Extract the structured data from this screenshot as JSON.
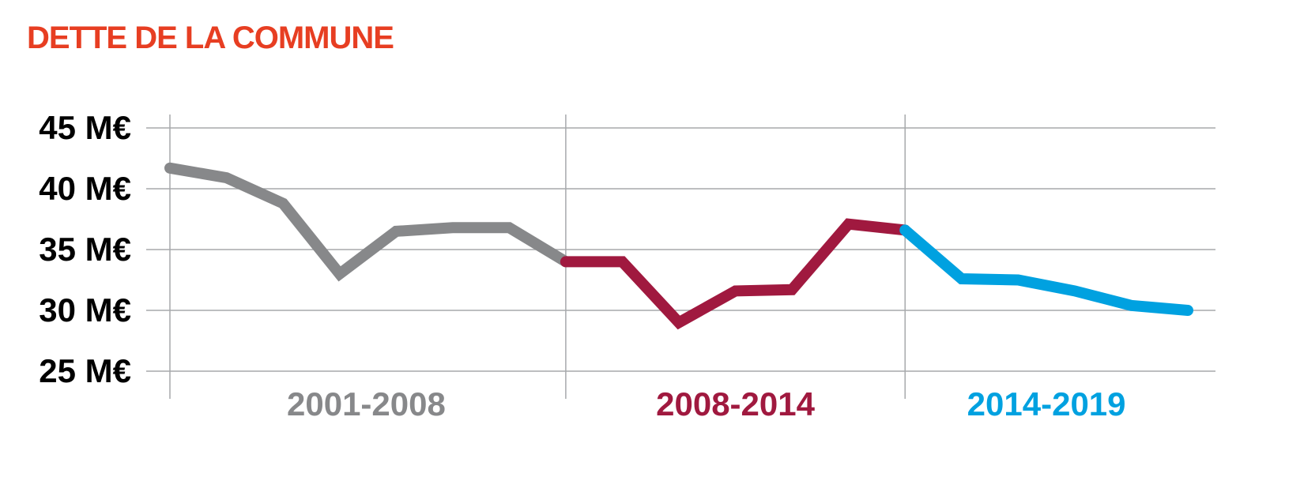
{
  "chart_data": {
    "type": "line",
    "title": "DETTE DE LA COMMUNE",
    "ylim": [
      25,
      45
    ],
    "yticks": [
      {
        "value": 45,
        "label": "45 M€"
      },
      {
        "value": 40,
        "label": "40 M€"
      },
      {
        "value": 35,
        "label": "35 M€"
      },
      {
        "value": 30,
        "label": "30 M€"
      },
      {
        "value": 25,
        "label": "25 M€"
      }
    ],
    "x": [
      2001,
      2002,
      2003,
      2004,
      2005,
      2006,
      2007,
      2008,
      2009,
      2010,
      2011,
      2012,
      2013,
      2014,
      2015,
      2016,
      2017,
      2018,
      2019
    ],
    "grid": true,
    "series": [
      {
        "name": "2001-2008",
        "color": "#87888a",
        "points": [
          [
            2001,
            41.7
          ],
          [
            2002,
            40.9
          ],
          [
            2003,
            38.8
          ],
          [
            2004,
            33.0
          ],
          [
            2005,
            36.5
          ],
          [
            2006,
            36.8
          ],
          [
            2007,
            36.8
          ],
          [
            2008,
            34.0
          ]
        ]
      },
      {
        "name": "2008-2014",
        "color": "#a0193f",
        "points": [
          [
            2008,
            34.0
          ],
          [
            2009,
            34.0
          ],
          [
            2010,
            29.0
          ],
          [
            2011,
            31.6
          ],
          [
            2012,
            31.7
          ],
          [
            2013,
            37.1
          ],
          [
            2014,
            36.6
          ]
        ]
      },
      {
        "name": "2014-2019",
        "color": "#00a1e0",
        "points": [
          [
            2014,
            36.6
          ],
          [
            2015,
            32.6
          ],
          [
            2016,
            32.5
          ],
          [
            2017,
            31.6
          ],
          [
            2018,
            30.4
          ],
          [
            2019,
            30.0
          ]
        ]
      }
    ],
    "period_breaks": [
      2008,
      2014
    ]
  },
  "colors": {
    "title": "#e73e22",
    "grid": "#a7a9ac",
    "axis_text": "#000000"
  }
}
